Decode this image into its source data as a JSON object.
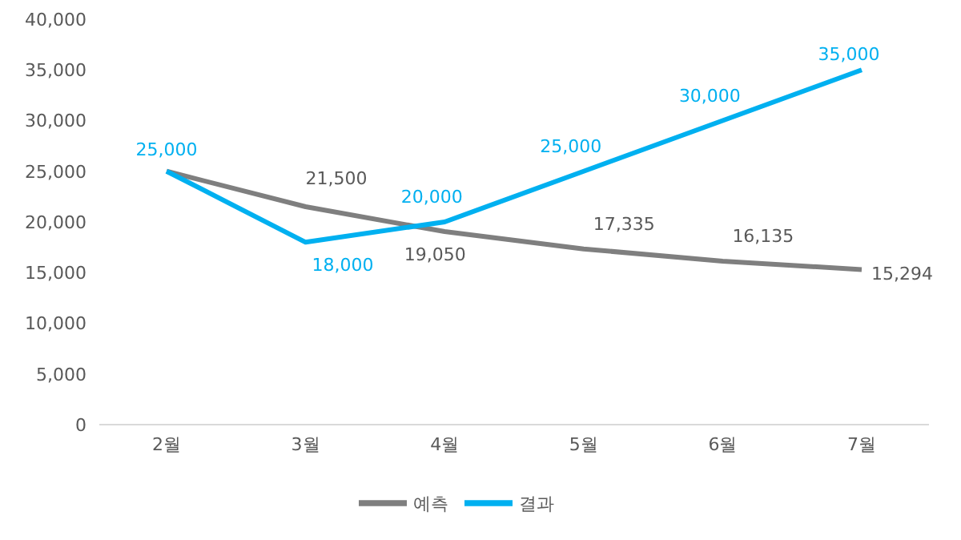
{
  "chart_data": {
    "type": "line",
    "categories": [
      "2월",
      "3월",
      "4월",
      "5월",
      "6월",
      "7월"
    ],
    "series": [
      {
        "name": "예측",
        "color": "#7f7f7f",
        "values": [
          25000,
          21500,
          19050,
          17335,
          16135,
          15294
        ],
        "value_labels": [
          null,
          "21,500",
          "19,050",
          "17,335",
          "16,135",
          "15,294"
        ]
      },
      {
        "name": "결과",
        "color": "#00b0f0",
        "values": [
          25000,
          18000,
          20000,
          25000,
          30000,
          35000
        ],
        "value_labels": [
          "25,000",
          "18,000",
          "20,000",
          "25,000",
          "30,000",
          "35,000"
        ]
      }
    ],
    "ylim": [
      0,
      40000
    ],
    "yticks": [
      {
        "value": 0,
        "label": "0"
      },
      {
        "value": 5000,
        "label": "5,000"
      },
      {
        "value": 10000,
        "label": "10,000"
      },
      {
        "value": 15000,
        "label": "15,000"
      },
      {
        "value": 20000,
        "label": "20,000"
      },
      {
        "value": 25000,
        "label": "25,000"
      },
      {
        "value": 30000,
        "label": "30,000"
      },
      {
        "value": 35000,
        "label": "35,000"
      },
      {
        "value": 40000,
        "label": "40,000"
      }
    ],
    "grid": false,
    "legend": "bottom",
    "marker": "none",
    "line_style": "solid"
  }
}
